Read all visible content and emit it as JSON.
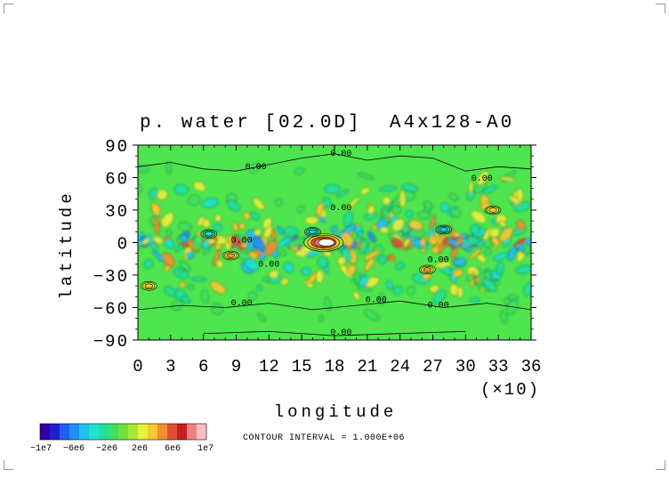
{
  "chart_data": {
    "type": "heatmap",
    "title": "p. water [02.0D]  A4x128-A0",
    "xlabel": "longitude",
    "ylabel": "latitude",
    "x_multiplier": "(×10)",
    "xlim": [
      0,
      36
    ],
    "ylim": [
      -90,
      90
    ],
    "x_ticks": [
      0,
      3,
      6,
      9,
      12,
      15,
      18,
      21,
      24,
      27,
      30,
      33,
      36
    ],
    "y_ticks": [
      90,
      60,
      30,
      0,
      -30,
      -60,
      -90
    ],
    "grid": false,
    "contour_interval": "CONTOUR INTERVAL = 1.000E+06",
    "contour_labels": [
      {
        "text": "0.00",
        "lon": 10.8,
        "lat": 68
      },
      {
        "text": "0.00",
        "lon": 18.6,
        "lat": 80
      },
      {
        "text": "0.00",
        "lon": 31.5,
        "lat": 57
      },
      {
        "text": "0.00",
        "lon": 18.6,
        "lat": 30
      },
      {
        "text": "0.00",
        "lon": 9.5,
        "lat": 0
      },
      {
        "text": "0.00",
        "lon": 12.0,
        "lat": -22
      },
      {
        "text": "0.00",
        "lon": 9.5,
        "lat": -58
      },
      {
        "text": "0.00",
        "lon": 21.8,
        "lat": -55
      },
      {
        "text": "0.00",
        "lon": 27.5,
        "lat": -60
      },
      {
        "text": "0.00",
        "lon": 27.5,
        "lat": -18
      },
      {
        "text": "0.00",
        "lon": 18.6,
        "lat": -85
      }
    ],
    "features": [
      {
        "kind": "maximum",
        "lon": 17.0,
        "lat": 0,
        "value": 12000000.0
      },
      {
        "kind": "minimum",
        "lon": 16.0,
        "lat": 10,
        "value": -6000000.0
      },
      {
        "kind": "minimum",
        "lon": 28.0,
        "lat": 12,
        "value": -6000000.0
      },
      {
        "kind": "maximum",
        "lon": 26.5,
        "lat": -25,
        "value": 6000000.0
      },
      {
        "kind": "maximum",
        "lon": 8.5,
        "lat": -12,
        "value": 6000000.0
      },
      {
        "kind": "maximum",
        "lon": 1.0,
        "lat": -40,
        "value": 5000000.0
      },
      {
        "kind": "minimum",
        "lon": 6.5,
        "lat": 8,
        "value": -4000000.0
      },
      {
        "kind": "maximum",
        "lon": 32.5,
        "lat": 30,
        "value": 4000000.0
      }
    ],
    "colorbar": {
      "labels": [
        "−1e7",
        "−6e6",
        "−2e6",
        "2e6",
        "6e6",
        "1e7"
      ],
      "colors": [
        "#3000a0",
        "#2020d0",
        "#2060f0",
        "#1e90f0",
        "#20c0f0",
        "#20e0d0",
        "#20e0a0",
        "#40e060",
        "#70e040",
        "#a8e838",
        "#e8f040",
        "#f8c830",
        "#f09030",
        "#e05030",
        "#c02020",
        "#f08080",
        "#f8c0c0"
      ],
      "background": "#4ee54e"
    }
  }
}
